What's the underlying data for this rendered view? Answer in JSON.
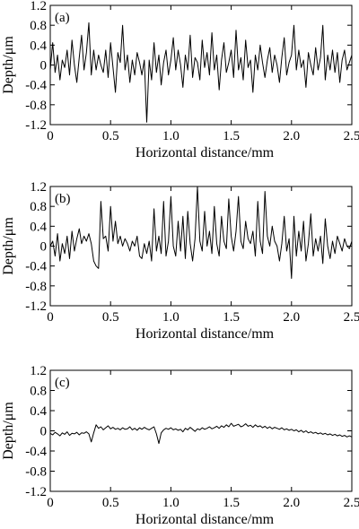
{
  "chart_data": [
    {
      "type": "line",
      "panel_label": "(a)",
      "xlabel": "Horizontal distance/mm",
      "ylabel": "Depth/μm",
      "xlim": [
        0,
        2.5
      ],
      "ylim": [
        -1.2,
        1.2
      ],
      "xticks": [
        0,
        0.5,
        1.0,
        1.5,
        2.0,
        2.5
      ],
      "xtick_labels": [
        "0",
        "0.5",
        "1.0",
        "1.5",
        "2.0",
        "2.5"
      ],
      "yticks": [
        1.2,
        0.8,
        0.4,
        0,
        -0.4,
        -0.8,
        -1.2
      ],
      "ytick_labels": [
        "1.2",
        "0.8",
        "0.4",
        "0",
        "-0.4",
        "-0.8",
        "-1.2"
      ],
      "grid": false,
      "series": [
        {
          "x": [
            0,
            0.02,
            0.04,
            0.06,
            0.08,
            0.1,
            0.12,
            0.14,
            0.16,
            0.18,
            0.2,
            0.22,
            0.24,
            0.26,
            0.28,
            0.3,
            0.32,
            0.34,
            0.36,
            0.38,
            0.4,
            0.42,
            0.44,
            0.46,
            0.48,
            0.5,
            0.52,
            0.54,
            0.56,
            0.58,
            0.6,
            0.62,
            0.64,
            0.66,
            0.68,
            0.7,
            0.72,
            0.74,
            0.76,
            0.78,
            0.8,
            0.82,
            0.84,
            0.86,
            0.88,
            0.9,
            0.92,
            0.94,
            0.96,
            0.98,
            1.0,
            1.02,
            1.04,
            1.06,
            1.08,
            1.1,
            1.12,
            1.14,
            1.16,
            1.18,
            1.2,
            1.22,
            1.24,
            1.26,
            1.28,
            1.3,
            1.32,
            1.34,
            1.36,
            1.38,
            1.4,
            1.42,
            1.44,
            1.46,
            1.48,
            1.5,
            1.52,
            1.54,
            1.56,
            1.58,
            1.6,
            1.62,
            1.64,
            1.66,
            1.68,
            1.7,
            1.72,
            1.74,
            1.76,
            1.78,
            1.8,
            1.82,
            1.84,
            1.86,
            1.88,
            1.9,
            1.92,
            1.94,
            1.96,
            1.98,
            2.0,
            2.02,
            2.04,
            2.06,
            2.08,
            2.1,
            2.12,
            2.14,
            2.16,
            2.18,
            2.2,
            2.22,
            2.24,
            2.26,
            2.28,
            2.3,
            2.32,
            2.34,
            2.36,
            2.38,
            2.4,
            2.42,
            2.44,
            2.46,
            2.48,
            2.5
          ],
          "y": [
            -0.1,
            0.45,
            -0.15,
            0.2,
            -0.3,
            0.1,
            -0.05,
            0.3,
            -0.2,
            0.5,
            0.0,
            -0.35,
            0.15,
            0.6,
            -0.1,
            0.25,
            0.85,
            -0.2,
            0.3,
            -0.1,
            0.2,
            0.0,
            -0.15,
            0.3,
            -0.25,
            0.45,
            -0.05,
            -0.55,
            0.25,
            0.05,
            0.8,
            -0.1,
            0.2,
            -0.35,
            0.1,
            -0.2,
            0.25,
            0.05,
            -0.2,
            0.1,
            -1.15,
            0.1,
            -0.3,
            0.45,
            -0.15,
            0.2,
            -0.4,
            0.05,
            0.3,
            -0.2,
            0.1,
            0.55,
            -0.1,
            0.3,
            0.0,
            -0.45,
            0.2,
            -0.1,
            0.6,
            -0.25,
            0.15,
            0.05,
            -0.3,
            0.5,
            -0.05,
            0.25,
            -0.2,
            0.65,
            -0.1,
            0.2,
            -0.5,
            0.1,
            0.45,
            -0.15,
            0.05,
            0.3,
            -0.25,
            0.7,
            -0.1,
            0.15,
            -0.3,
            0.5,
            -0.05,
            0.1,
            -0.55,
            0.2,
            -0.1,
            0.4,
            0.05,
            -0.25,
            0.1,
            0.35,
            -0.15,
            0.2,
            0.0,
            -0.35,
            0.15,
            0.55,
            -0.2,
            0.05,
            0.2,
            0.8,
            -0.1,
            0.3,
            -0.05,
            0.1,
            -0.45,
            0.25,
            0.0,
            -0.2,
            0.35,
            -0.1,
            0.15,
            0.8,
            -0.3,
            0.2,
            -0.1,
            0.3,
            -0.15,
            0.25,
            -0.35,
            0.1,
            0.3,
            -0.1,
            0.05,
            0.2
          ]
        }
      ]
    },
    {
      "type": "line",
      "panel_label": "(b)",
      "xlabel": "Horizontal distance/mm",
      "ylabel": "Depth/μm",
      "xlim": [
        0,
        2.5
      ],
      "ylim": [
        -1.2,
        1.2
      ],
      "xticks": [
        0,
        0.5,
        1.0,
        1.5,
        2.0,
        2.5
      ],
      "xtick_labels": [
        "0",
        "0.5",
        "1.0",
        "1.5",
        "2.0",
        "2.5"
      ],
      "yticks": [
        1.2,
        0.8,
        0.4,
        0,
        -0.4,
        -0.8,
        -1.2
      ],
      "ytick_labels": [
        "1.2",
        "0.8",
        "0.4",
        "0",
        "-0.4",
        "-0.8",
        "-1.2"
      ],
      "grid": false,
      "series": [
        {
          "x": [
            0,
            0.02,
            0.04,
            0.06,
            0.08,
            0.1,
            0.12,
            0.14,
            0.16,
            0.18,
            0.2,
            0.22,
            0.24,
            0.26,
            0.28,
            0.3,
            0.32,
            0.34,
            0.36,
            0.38,
            0.4,
            0.42,
            0.44,
            0.46,
            0.48,
            0.5,
            0.52,
            0.54,
            0.56,
            0.58,
            0.6,
            0.62,
            0.64,
            0.66,
            0.68,
            0.7,
            0.72,
            0.74,
            0.76,
            0.78,
            0.8,
            0.82,
            0.84,
            0.86,
            0.88,
            0.9,
            0.92,
            0.94,
            0.96,
            0.98,
            1.0,
            1.02,
            1.04,
            1.06,
            1.08,
            1.1,
            1.12,
            1.14,
            1.16,
            1.18,
            1.2,
            1.22,
            1.24,
            1.26,
            1.28,
            1.3,
            1.32,
            1.34,
            1.36,
            1.38,
            1.4,
            1.42,
            1.44,
            1.46,
            1.48,
            1.5,
            1.52,
            1.54,
            1.56,
            1.58,
            1.6,
            1.62,
            1.64,
            1.66,
            1.68,
            1.7,
            1.72,
            1.74,
            1.76,
            1.78,
            1.8,
            1.82,
            1.84,
            1.86,
            1.88,
            1.9,
            1.92,
            1.94,
            1.96,
            1.98,
            2.0,
            2.02,
            2.04,
            2.06,
            2.08,
            2.1,
            2.12,
            2.14,
            2.16,
            2.18,
            2.2,
            2.22,
            2.24,
            2.26,
            2.28,
            2.3,
            2.32,
            2.34,
            2.36,
            2.38,
            2.4,
            2.42,
            2.44,
            2.46,
            2.48,
            2.5
          ],
          "y": [
            0.0,
            0.1,
            -0.2,
            0.25,
            -0.3,
            0.05,
            -0.15,
            0.2,
            -0.25,
            0.3,
            -0.1,
            0.15,
            0.35,
            0.05,
            0.2,
            0.1,
            0.25,
            0.05,
            -0.3,
            -0.4,
            -0.45,
            0.9,
            0.15,
            0.2,
            -0.1,
            0.8,
            0.1,
            0.5,
            0.05,
            0.2,
            0.0,
            0.15,
            0.05,
            -0.1,
            0.1,
            0.0,
            0.2,
            -0.2,
            -0.25,
            0.05,
            -0.15,
            0.1,
            -0.3,
            0.75,
            -0.1,
            0.2,
            -0.15,
            0.9,
            -0.2,
            0.1,
            1.0,
            0.0,
            -0.2,
            0.5,
            -0.1,
            0.6,
            -0.25,
            0.7,
            0.05,
            -0.3,
            0.15,
            1.2,
            0.1,
            -0.1,
            0.7,
            0.0,
            0.3,
            -0.15,
            0.8,
            0.05,
            -0.2,
            0.6,
            0.1,
            -0.05,
            0.95,
            0.2,
            -0.1,
            0.3,
            1.0,
            0.1,
            -0.05,
            0.5,
            0.15,
            0.05,
            0.3,
            -0.2,
            0.9,
            0.1,
            -0.15,
            1.1,
            0.2,
            0.0,
            0.4,
            0.1,
            0.0,
            -0.3,
            0.05,
            0.6,
            -0.1,
            0.15,
            -0.65,
            0.6,
            -0.2,
            0.3,
            -0.1,
            0.5,
            -0.3,
            0.05,
            0.65,
            -0.2,
            0.15,
            -0.1,
            0.2,
            -0.35,
            0.55,
            0.0,
            -0.25,
            0.1,
            -0.15,
            0.2,
            0.05,
            -0.1,
            0.15,
            0.0,
            -0.05,
            0.1
          ]
        }
      ]
    },
    {
      "type": "line",
      "panel_label": "(c)",
      "xlabel": "Horizontal distance/mm",
      "ylabel": "Depth/μm",
      "xlim": [
        0,
        2.5
      ],
      "ylim": [
        -1.2,
        1.2
      ],
      "xticks": [
        0,
        0.5,
        1.0,
        1.5,
        2.0,
        2.5
      ],
      "xtick_labels": [
        "0",
        "0.5",
        "1.0",
        "1.5",
        "2.0",
        "2.5"
      ],
      "yticks": [
        1.2,
        0.8,
        0.4,
        0,
        -0.4,
        -0.8,
        -1.2
      ],
      "ytick_labels": [
        "1.2",
        "0.8",
        "0.4",
        "0",
        "-0.4",
        "-0.8",
        "-1.2"
      ],
      "grid": false,
      "series": [
        {
          "x": [
            0,
            0.02,
            0.04,
            0.06,
            0.08,
            0.1,
            0.12,
            0.14,
            0.16,
            0.18,
            0.2,
            0.22,
            0.24,
            0.26,
            0.28,
            0.3,
            0.32,
            0.34,
            0.36,
            0.38,
            0.4,
            0.42,
            0.44,
            0.46,
            0.48,
            0.5,
            0.52,
            0.54,
            0.56,
            0.58,
            0.6,
            0.62,
            0.64,
            0.66,
            0.68,
            0.7,
            0.72,
            0.74,
            0.76,
            0.78,
            0.8,
            0.82,
            0.84,
            0.86,
            0.88,
            0.9,
            0.92,
            0.94,
            0.96,
            0.98,
            1.0,
            1.02,
            1.04,
            1.06,
            1.08,
            1.1,
            1.12,
            1.14,
            1.16,
            1.18,
            1.2,
            1.22,
            1.24,
            1.26,
            1.28,
            1.3,
            1.32,
            1.34,
            1.36,
            1.38,
            1.4,
            1.42,
            1.44,
            1.46,
            1.48,
            1.5,
            1.52,
            1.54,
            1.56,
            1.58,
            1.6,
            1.62,
            1.64,
            1.66,
            1.68,
            1.7,
            1.72,
            1.74,
            1.76,
            1.78,
            1.8,
            1.82,
            1.84,
            1.86,
            1.88,
            1.9,
            1.92,
            1.94,
            1.96,
            1.98,
            2.0,
            2.02,
            2.04,
            2.06,
            2.08,
            2.1,
            2.12,
            2.14,
            2.16,
            2.18,
            2.2,
            2.22,
            2.24,
            2.26,
            2.28,
            2.3,
            2.32,
            2.34,
            2.36,
            2.38,
            2.4,
            2.42,
            2.44,
            2.46,
            2.48,
            2.5
          ],
          "y": [
            -0.05,
            -0.08,
            -0.03,
            -0.06,
            -0.1,
            -0.04,
            -0.07,
            -0.02,
            -0.09,
            -0.05,
            -0.06,
            -0.03,
            -0.08,
            -0.04,
            -0.05,
            -0.02,
            -0.06,
            -0.22,
            -0.04,
            0.12,
            0.05,
            0.08,
            0.02,
            0.06,
            0.1,
            0.04,
            0.07,
            0.03,
            0.05,
            0.02,
            0.06,
            0.03,
            0.04,
            0.08,
            0.02,
            0.05,
            0.01,
            0.06,
            0.03,
            0.07,
            0.04,
            0.02,
            0.05,
            0.08,
            -0.06,
            -0.25,
            -0.04,
            0.02,
            0.05,
            0.03,
            0.06,
            0.02,
            0.04,
            0.01,
            0.03,
            -0.02,
            0.05,
            0.02,
            0.07,
            0.03,
            -0.01,
            0.04,
            0.02,
            0.06,
            0.03,
            0.05,
            0.08,
            0.04,
            0.06,
            0.09,
            0.05,
            0.1,
            0.07,
            0.12,
            0.08,
            0.15,
            0.09,
            0.11,
            0.13,
            0.08,
            0.1,
            0.14,
            0.09,
            0.11,
            0.07,
            0.12,
            0.08,
            0.1,
            0.06,
            0.09,
            0.05,
            0.08,
            0.04,
            0.07,
            0.05,
            0.03,
            0.06,
            0.02,
            0.04,
            0.01,
            0.03,
            0.0,
            0.02,
            -0.02,
            0.01,
            -0.03,
            0.0,
            -0.04,
            -0.02,
            -0.05,
            -0.03,
            -0.06,
            -0.04,
            -0.07,
            -0.05,
            -0.08,
            -0.06,
            -0.09,
            -0.07,
            -0.1,
            -0.08,
            -0.11,
            -0.09,
            -0.12,
            -0.1,
            -0.12
          ]
        }
      ]
    }
  ]
}
